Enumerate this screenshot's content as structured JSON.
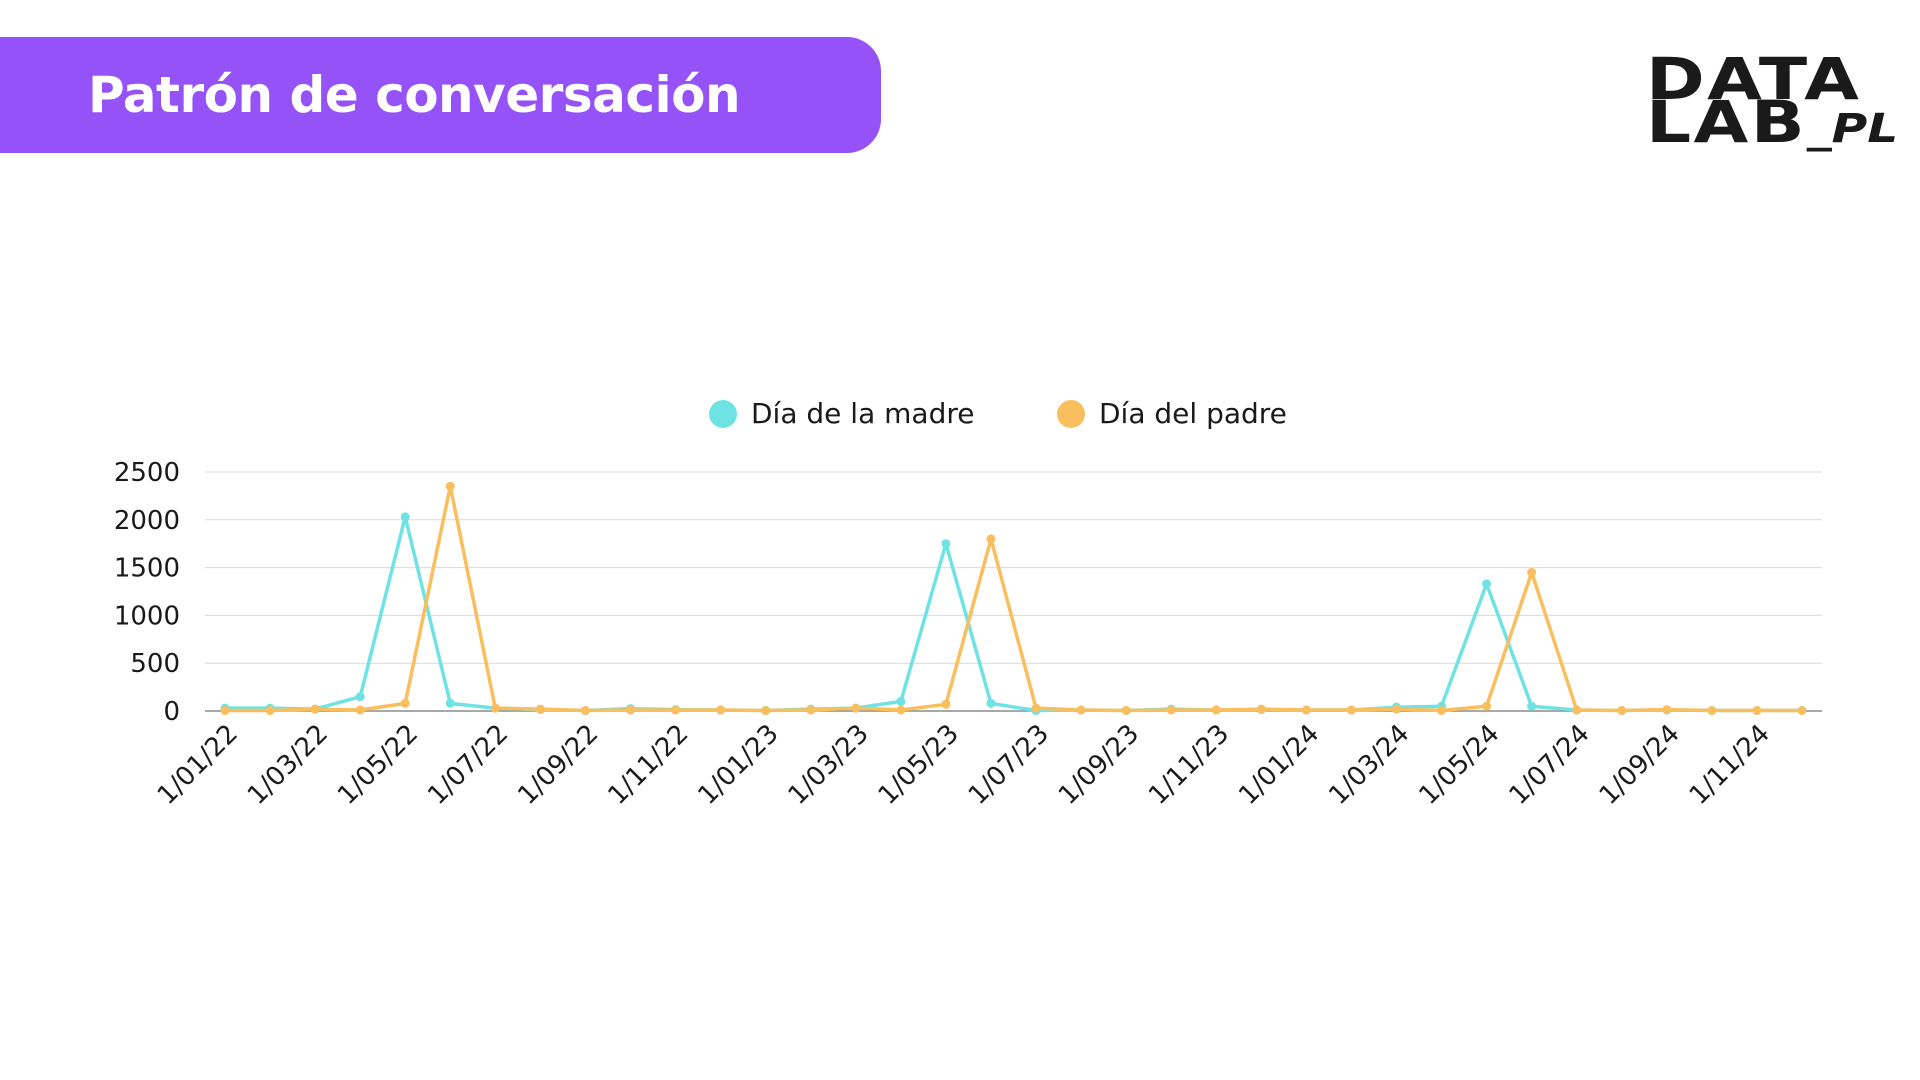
{
  "header": {
    "title": "Patrón de conversación"
  },
  "logo": {
    "line1": "DATA",
    "line2": "LAB",
    "suffix": "_PL"
  },
  "colors": {
    "banner": "#9552F7",
    "madre": "#6FE3E3",
    "padre": "#F9BF5E",
    "grid": "#d9d9d9",
    "axis": "#8c8c8c",
    "text": "#1a1a1a"
  },
  "chart_data": {
    "type": "line",
    "x": [
      "1/01/22",
      "1/02/22",
      "1/03/22",
      "1/04/22",
      "1/05/22",
      "1/06/22",
      "1/07/22",
      "1/08/22",
      "1/09/22",
      "1/10/22",
      "1/11/22",
      "1/12/22",
      "1/01/23",
      "1/02/23",
      "1/03/23",
      "1/04/23",
      "1/05/23",
      "1/06/23",
      "1/07/23",
      "1/08/23",
      "1/09/23",
      "1/10/23",
      "1/11/23",
      "1/12/23",
      "1/01/24",
      "1/02/24",
      "1/03/24",
      "1/04/24",
      "1/05/24",
      "1/06/24",
      "1/07/24",
      "1/08/24",
      "1/09/24",
      "1/10/24",
      "1/11/24",
      "1/12/24"
    ],
    "x_tick_labels": [
      "1/01/22",
      "1/03/22",
      "1/05/22",
      "1/07/22",
      "1/09/22",
      "1/11/22",
      "1/01/23",
      "1/03/23",
      "1/05/23",
      "1/07/23",
      "1/09/23",
      "1/11/23",
      "1/01/24",
      "1/03/24",
      "1/05/24",
      "1/07/24",
      "1/09/24",
      "1/11/24"
    ],
    "series": [
      {
        "name": "Día de la madre",
        "color_key": "madre",
        "values": [
          30,
          30,
          20,
          150,
          2030,
          80,
          30,
          15,
          5,
          25,
          15,
          10,
          5,
          20,
          30,
          100,
          1750,
          80,
          5,
          10,
          5,
          20,
          10,
          15,
          10,
          10,
          40,
          50,
          1330,
          50,
          10,
          5,
          10,
          5,
          5,
          5
        ]
      },
      {
        "name": "Día del padre",
        "color_key": "padre",
        "values": [
          5,
          5,
          20,
          10,
          80,
          2350,
          30,
          20,
          5,
          10,
          10,
          10,
          5,
          10,
          30,
          10,
          70,
          1800,
          30,
          10,
          5,
          10,
          10,
          20,
          10,
          10,
          20,
          5,
          50,
          1450,
          10,
          5,
          15,
          5,
          5,
          5
        ]
      }
    ],
    "y_ticks": [
      0,
      500,
      1000,
      1500,
      2000,
      2500
    ],
    "ylim": [
      0,
      2500
    ],
    "grid": true,
    "legend_position": "top-center"
  }
}
